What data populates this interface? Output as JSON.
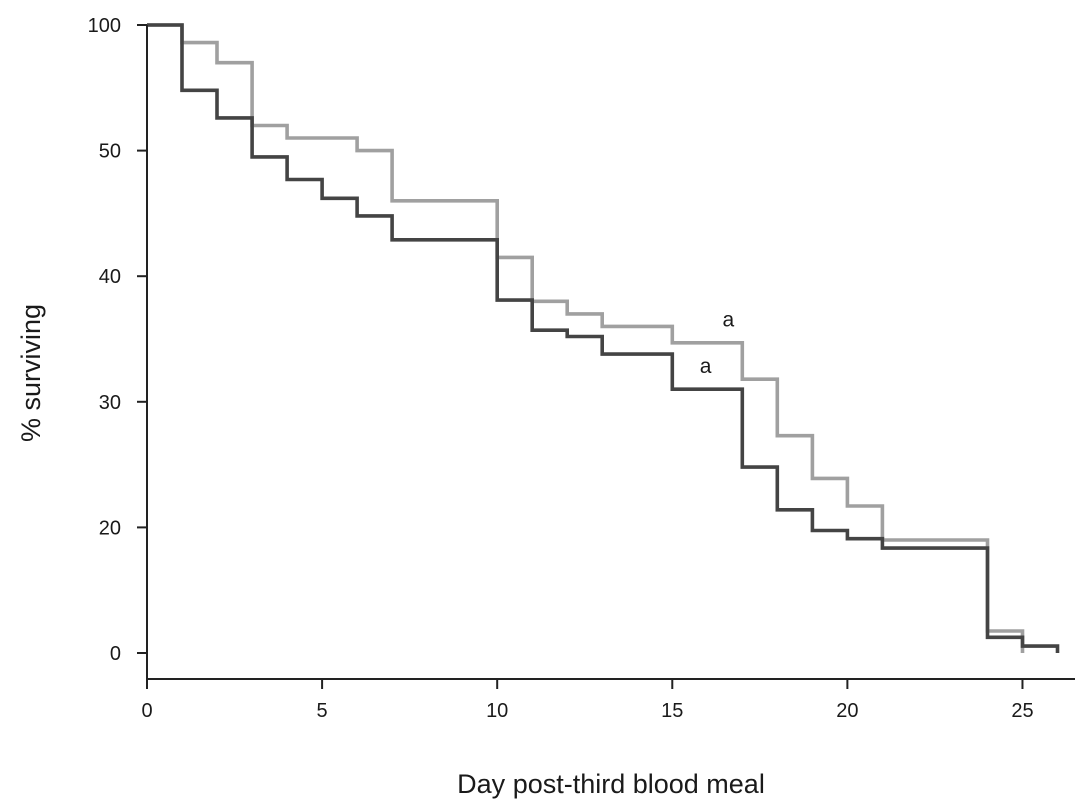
{
  "chart_data": {
    "type": "line",
    "step": true,
    "xlabel": "Day post-third blood meal",
    "ylabel": "% surviving",
    "xlim": [
      0,
      26.5
    ],
    "x_ticks": [
      0,
      5,
      10,
      15,
      20,
      25
    ],
    "y_ticks": [
      {
        "label": "0",
        "value": 0
      },
      {
        "label": "20",
        "value": 20
      },
      {
        "label": "30",
        "value": 30
      },
      {
        "label": "40",
        "value": 40
      },
      {
        "label": "50",
        "value": 50
      },
      {
        "label": "100",
        "value": 100
      }
    ],
    "y_axis_note": "broken-scale axis: labels 0,20,30,40,50,100 are equally spaced",
    "grid": false,
    "legend": "none",
    "series": [
      {
        "color": "#a0a0a0",
        "x": [
          0,
          1,
          2,
          3,
          4,
          6,
          7,
          10,
          11,
          12,
          13,
          15,
          17,
          18,
          19,
          20,
          21,
          24,
          25
        ],
        "y": [
          100,
          93,
          85,
          60,
          55,
          50,
          46,
          41.5,
          38,
          37,
          36,
          34.7,
          31.8,
          27.3,
          23.9,
          21.7,
          18,
          3.5,
          0
        ]
      },
      {
        "color": "#444444",
        "x": [
          0,
          1,
          2,
          3,
          4,
          5,
          6,
          7,
          10,
          11,
          12,
          13,
          15,
          17,
          18,
          19,
          20,
          21,
          24,
          25,
          26
        ],
        "y": [
          100,
          74,
          63,
          49.5,
          47.7,
          46.2,
          44.8,
          42.9,
          38.1,
          35.7,
          35.2,
          33.8,
          31,
          24.8,
          21.4,
          19.5,
          18.2,
          16.7,
          2.5,
          1.1,
          0
        ]
      }
    ],
    "annotations": [
      {
        "text": "a",
        "x": 16.6,
        "y": 36
      },
      {
        "text": "a",
        "x": 15.95,
        "y": 32.3
      }
    ]
  }
}
